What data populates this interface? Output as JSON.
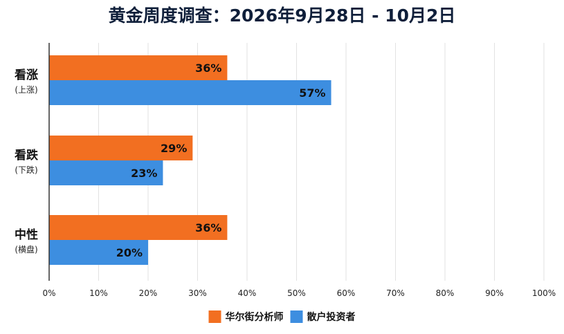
{
  "chart_data": {
    "type": "bar",
    "orientation": "horizontal",
    "title": "黄金周度调查：2026年9月28日 - 10月2日",
    "categories": [
      {
        "label": "看涨",
        "sublabel": "(上涨)"
      },
      {
        "label": "看跌",
        "sublabel": "(下跌)"
      },
      {
        "label": "中性",
        "sublabel": "(横盘)"
      }
    ],
    "series": [
      {
        "name": "华尔街分析师",
        "color": "#f26f21",
        "values": [
          36,
          29,
          36
        ],
        "value_labels": [
          "36%",
          "29%",
          "36%"
        ]
      },
      {
        "name": "散户投资者",
        "color": "#3d8ee0",
        "values": [
          57,
          23,
          20
        ],
        "value_labels": [
          "57%",
          "23%",
          "20%"
        ]
      }
    ],
    "xlim": [
      0,
      100
    ],
    "x_ticks": [
      0,
      10,
      20,
      30,
      40,
      50,
      60,
      70,
      80,
      90,
      100
    ],
    "x_tick_labels": [
      "0%",
      "10%",
      "20%",
      "30%",
      "40%",
      "50%",
      "60%",
      "70%",
      "80%",
      "90%",
      "100%"
    ],
    "grid": "vertical",
    "legend": {
      "placement": "bottom-center"
    }
  }
}
